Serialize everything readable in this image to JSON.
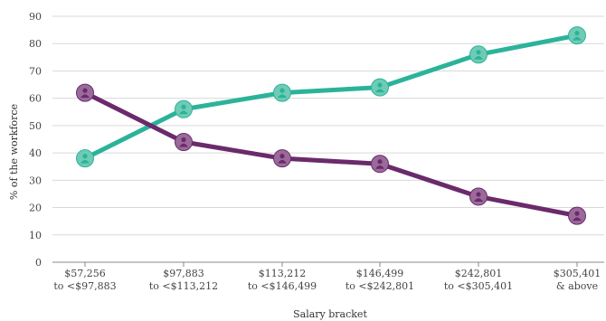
{
  "chart_data": {
    "type": "line",
    "xlabel": "Salary bracket",
    "ylabel": "% of the workforce",
    "ylim": [
      0,
      90
    ],
    "yticks": [
      0,
      10,
      20,
      30,
      40,
      50,
      60,
      70,
      80,
      90
    ],
    "grid": true,
    "categories": [
      [
        "$57,256",
        "to <$97,883"
      ],
      [
        "$97,883",
        "to <$113,212"
      ],
      [
        "$113,212",
        "to <$146,499"
      ],
      [
        "$146,499",
        "to <$242,801"
      ],
      [
        "$242,801",
        "to <$305,401"
      ],
      [
        "$305,401",
        "& above"
      ]
    ],
    "series": [
      {
        "color": "#2bb39a",
        "marker_color": "#6fcbb5",
        "icon": "person-icon",
        "values": [
          38,
          56,
          62,
          64,
          76,
          83
        ]
      },
      {
        "color": "#6b2a6b",
        "marker_color": "#9a6b9a",
        "icon": "person-icon",
        "values": [
          62,
          44,
          38,
          36,
          24,
          17
        ]
      }
    ]
  }
}
